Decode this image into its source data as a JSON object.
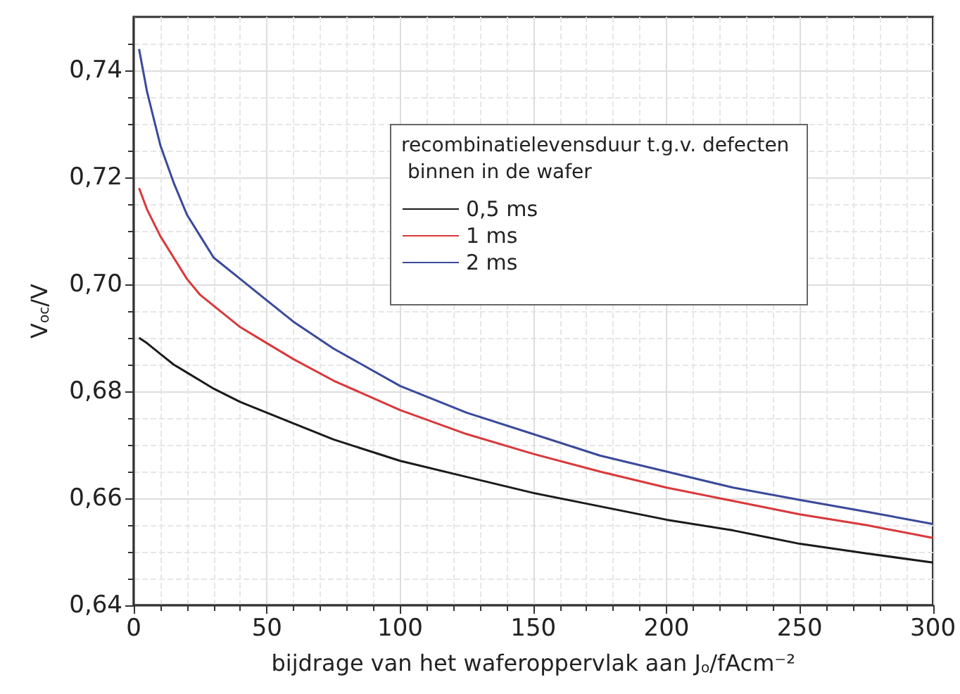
{
  "chart_data": {
    "type": "line",
    "xlabel": "bijdrage van het waferoppervlak aan J$_{o}$/fAcm⁻²",
    "ylabel": "V$_{oc}$/V",
    "legend_title": "recombinatielevensduur t.g.v. defecten binnen in de wafer",
    "x": [
      2,
      5,
      10,
      15,
      20,
      25,
      30,
      40,
      50,
      60,
      75,
      100,
      125,
      150,
      175,
      200,
      225,
      250,
      275,
      300
    ],
    "series": [
      {
        "name": "0,5 ms",
        "color": "#1a1a1a",
        "values": [
          0.69,
          0.689,
          0.687,
          0.685,
          0.6835,
          0.682,
          0.6805,
          0.678,
          0.676,
          0.674,
          0.671,
          0.667,
          0.664,
          0.661,
          0.6585,
          0.656,
          0.654,
          0.6515,
          0.6497,
          0.648
        ]
      },
      {
        "name": "1 ms",
        "color": "#d9383a",
        "values": [
          0.718,
          0.714,
          0.709,
          0.705,
          0.701,
          0.698,
          0.696,
          0.692,
          0.689,
          0.686,
          0.682,
          0.6765,
          0.672,
          0.6683,
          0.665,
          0.662,
          0.6595,
          0.657,
          0.655,
          0.6526
        ]
      },
      {
        "name": "2 ms",
        "color": "#3a4a9a",
        "values": [
          0.744,
          0.736,
          0.726,
          0.719,
          0.713,
          0.709,
          0.705,
          0.701,
          0.697,
          0.693,
          0.688,
          0.681,
          0.676,
          0.672,
          0.668,
          0.665,
          0.662,
          0.6597,
          0.6575,
          0.6552
        ]
      }
    ],
    "xlim": [
      0,
      300
    ],
    "xticks": [
      0,
      50,
      100,
      150,
      200,
      250,
      300
    ],
    "ylim": [
      0.64,
      0.75
    ],
    "yticks": [
      {
        "value": 0.64,
        "label": "0,64"
      },
      {
        "value": 0.66,
        "label": "0,66"
      },
      {
        "value": 0.68,
        "label": "0,68"
      },
      {
        "value": 0.7,
        "label": "0,70"
      },
      {
        "value": 0.72,
        "label": "0,72"
      },
      {
        "value": 0.74,
        "label": "0,74"
      }
    ],
    "grid": true,
    "legend": "top",
    "marker": "none",
    "line_style": "solid"
  }
}
